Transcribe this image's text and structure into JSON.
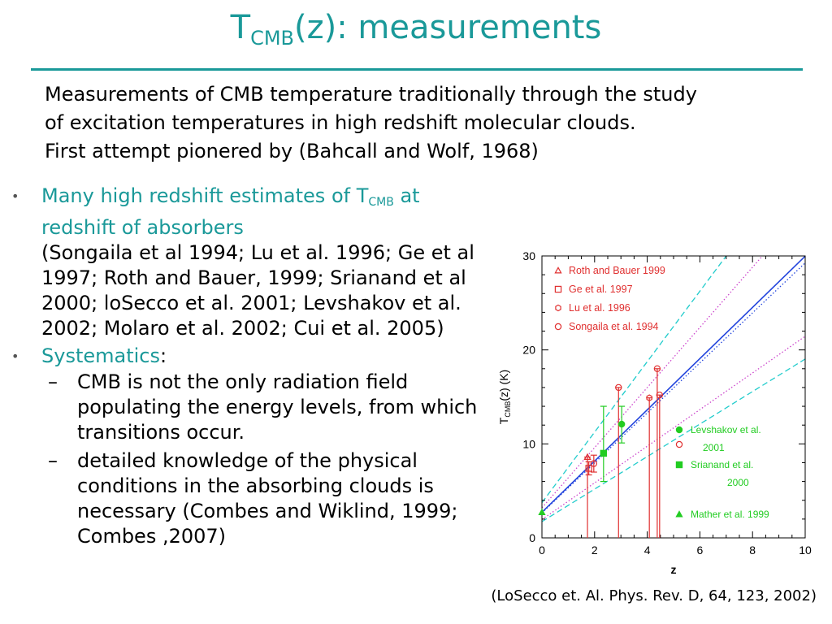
{
  "slide": {
    "title_main": "T",
    "title_sub": "CMB",
    "title_rest": "(z): measurements",
    "intro": [
      "Measurements of CMB temperature traditionally through the study",
      "of excitation temperatures in high redshift molecular clouds.",
      "First attempt pionered by (Bahcall and Wolf, 1968)"
    ],
    "bullet1_a": "Many high redshift estimates of T",
    "bullet1_sub": "CMB",
    "bullet1_b": " at redshift of absorbers",
    "bullet1_refs": "(Songaila et al 1994; Lu et al. 1996; Ge et al 1997; Roth and Bauer, 1999; Srianand et al 2000; loSecco et al. 2001; Levshakov et al. 2002; Molaro et al. 2002; Cui et al. 2005)",
    "bullet2_label": "Systematics",
    "bullet2_colon": ":",
    "sub_items": [
      "CMB is not the only radiation field populating the energy levels, from which transitions occur.",
      "detailed knowledge of the physical conditions in the absorbing clouds is necessary (Combes and Wiklind, 1999; Combes ,2007)"
    ],
    "citation": "(LoSecco et. Al. Phys. Rev. D, 64, 123, 2002)",
    "bullet_glyph": "•",
    "dash_glyph": "–"
  },
  "chart_data": {
    "type": "scatter",
    "xlabel": "z",
    "ylabel_main": "T",
    "ylabel_sub": "CMB",
    "ylabel_rest": "(z)   (K)",
    "xlim": [
      0,
      10
    ],
    "ylim": [
      0,
      30
    ],
    "xticks": [
      0,
      2,
      4,
      6,
      8,
      10
    ],
    "yticks": [
      0,
      10,
      20,
      30
    ],
    "colors": {
      "red": "#e03030",
      "green": "#22cc22",
      "blue": "#2244dd",
      "cyan": "#22cccc",
      "magenta": "#cc44cc"
    },
    "series": [
      {
        "name": "Roth and Bauer 1999",
        "marker": "triangle-open",
        "color": "red",
        "points": [
          {
            "x": 1.73,
            "y": 8.6,
            "lo": 0,
            "hi": 8.6
          }
        ]
      },
      {
        "name": "Ge et al. 1997",
        "marker": "square-open",
        "color": "red",
        "points": [
          {
            "x": 1.78,
            "y": 7.4,
            "lo": 6.7,
            "hi": 8.1
          }
        ]
      },
      {
        "name": "Lu et al. 1996",
        "marker": "hexagon-open",
        "color": "red",
        "points": [
          {
            "x": 4.08,
            "y": 14.9,
            "lo": 0,
            "hi": 14.9
          }
        ]
      },
      {
        "name": "Songaila et al. 1994",
        "marker": "circle-open",
        "color": "red",
        "points": [
          {
            "x": 1.97,
            "y": 7.9,
            "lo": 7.0,
            "hi": 8.8
          },
          {
            "x": 2.91,
            "y": 16.0,
            "lo": 0,
            "hi": 16.0
          },
          {
            "x": 4.38,
            "y": 18.0,
            "lo": 0,
            "hi": 18.0
          },
          {
            "x": 4.47,
            "y": 15.2,
            "lo": 0,
            "hi": 15.2
          }
        ]
      },
      {
        "name_line1": "Levshakov et al.",
        "name_line2": "2001",
        "marker": "circle-filled",
        "color": "green",
        "points": [
          {
            "x": 3.03,
            "y": 12.1,
            "lo": 10.1,
            "hi": 14.0
          }
        ]
      },
      {
        "name_line1": "Srianand et al.",
        "name_line2": "2000",
        "marker": "square-filled",
        "color": "green",
        "points": [
          {
            "x": 2.34,
            "y": 9.0,
            "lo": 6.0,
            "hi": 14.0
          }
        ]
      },
      {
        "name": "Mather et al. 1999",
        "marker": "triangle-filled",
        "color": "green",
        "points": [
          {
            "x": 0.0,
            "y": 2.725,
            "lo": 2.725,
            "hi": 2.725
          }
        ]
      }
    ],
    "fits": [
      {
        "style": "solid",
        "color": "blue",
        "slope": 2.725
      },
      {
        "style": "dotted",
        "color": "blue",
        "slope": 2.66
      },
      {
        "style": "dotted",
        "color": "magenta",
        "slope": 3.2
      },
      {
        "style": "dotted",
        "color": "magenta",
        "slope": 1.95
      },
      {
        "style": "dashed",
        "color": "cyan",
        "slope": 3.75
      },
      {
        "style": "dashed",
        "color": "cyan",
        "slope": 1.73
      }
    ],
    "legend_placement": "top-left and middle-right"
  }
}
